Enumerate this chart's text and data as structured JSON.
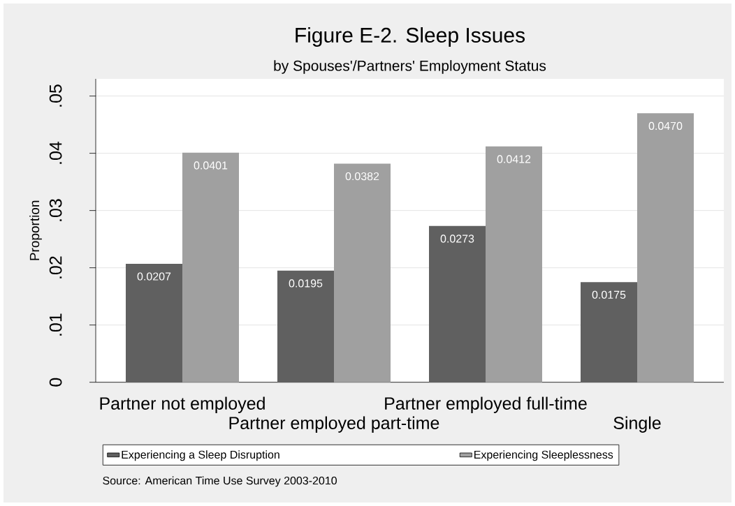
{
  "chart_data": {
    "type": "bar",
    "title": "Figure E-2. Sleep Issues",
    "subtitle": "by Spouses'/Partners' Employment Status",
    "ylabel": "Proportion",
    "categories": [
      "Partner not employed",
      "Partner employed part-time",
      "Partner employed full-time",
      "Single"
    ],
    "series": [
      {
        "name": "Experiencing a Sleep Disruption",
        "color": "#606060",
        "values": [
          0.0207,
          0.0195,
          0.0273,
          0.0175
        ],
        "value_labels": [
          "0.0207",
          "0.0195",
          "0.0273",
          "0.0175"
        ]
      },
      {
        "name": "Experiencing Sleeplessness",
        "color": "#a0a0a0",
        "values": [
          0.0401,
          0.0382,
          0.0412,
          0.047
        ],
        "value_labels": [
          "0.0401",
          "0.0382",
          "0.0412",
          "0.0470"
        ]
      }
    ],
    "ylim": [
      0,
      0.053
    ],
    "yticks": [
      0,
      {
        "value": 0.01,
        "label": ".01"
      },
      {
        "value": 0.02,
        "label": ".02"
      },
      {
        "value": 0.03,
        "label": ".03"
      },
      {
        "value": 0.04,
        "label": ".04"
      },
      {
        "value": 0.05,
        "label": ".05"
      }
    ],
    "grid": "y",
    "legend": "bottom",
    "annotations": [
      "Source:  American Time Use Survey 2003-2010"
    ]
  }
}
